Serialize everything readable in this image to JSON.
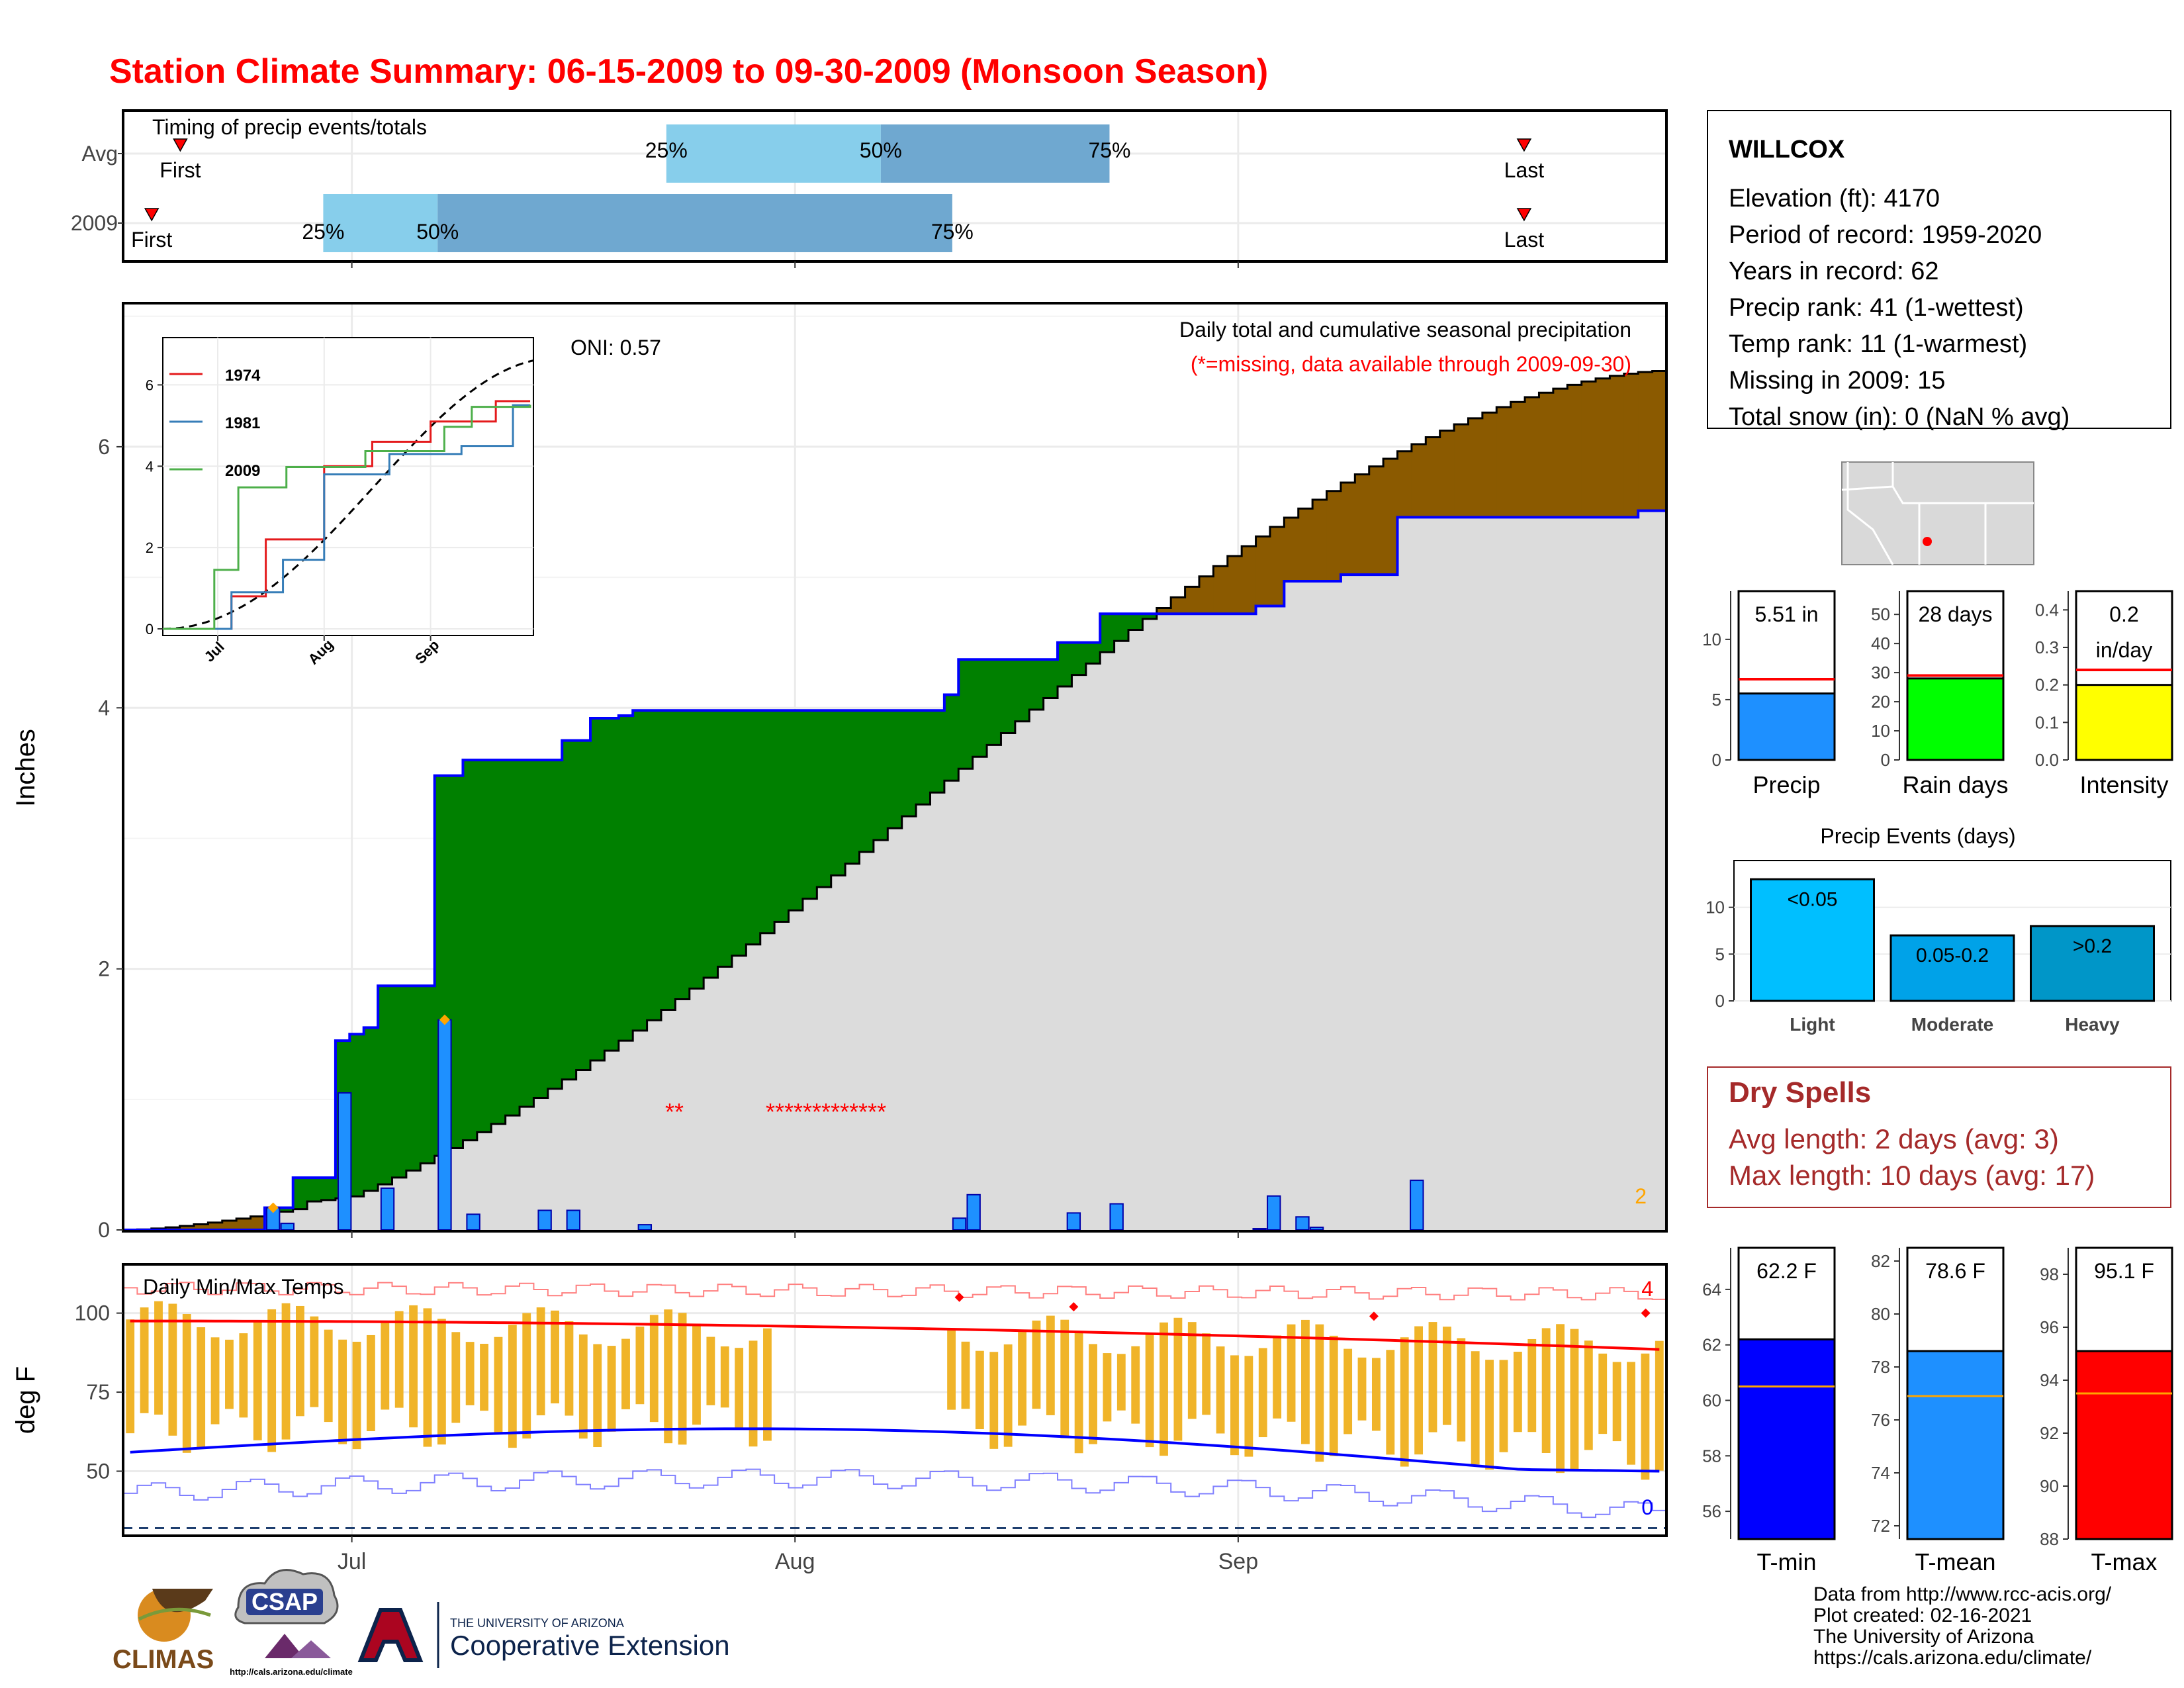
{
  "page": {
    "title": "Station Climate Summary: 06-15-2009 to 09-30-2009 (Monsoon Season)",
    "footer": {
      "data_source": "Data from http://www.rcc-acis.org/",
      "created": "Plot created: 02-16-2021",
      "org": "The University of Arizona",
      "url": "https://cals.arizona.edu/climate/"
    },
    "logos": {
      "climas": "CLIMAS",
      "csap": "CSAP",
      "csap_url": "http://cals.arizona.edu/climate",
      "ua_line1": "THE UNIVERSITY OF ARIZONA",
      "ua_line2": "Cooperative Extension"
    }
  },
  "station": {
    "name": "WILLCOX",
    "lines": [
      "Elevation (ft): 4170",
      "Period of record: 1959-2020",
      "Years in record: 62",
      "Precip rank: 41 (1-wettest)",
      "Temp rank: 11 (1-warmest)",
      "Missing in 2009: 15",
      "Total snow (in): 0 (NaN % avg)"
    ]
  },
  "dry_spells": {
    "title": "Dry Spells",
    "avg": "Avg length: 2 days (avg: 3)",
    "max": "Max length: 10 days (avg: 17)"
  },
  "colors": {
    "title": "#ff0000",
    "wet": "#008000",
    "dry": "#8b5a00",
    "cumulative_line": "#0000ff",
    "bars": "#1e90ff",
    "tmax": "#ff0000",
    "tmin": "#0000ff",
    "temp_bar": "#f0b429",
    "quartile_light": "#87ceeb",
    "quartile_dark": "#6fa8d0",
    "dry_spells": "#a52a2a"
  },
  "chart_data": [
    {
      "id": "timing",
      "type": "bar",
      "title": "Timing of precip events/totals",
      "rows": [
        {
          "label": "Avg",
          "first": "2009-06-19",
          "q25": "2009-07-23",
          "q50": "2009-08-07",
          "q75": "2009-08-23",
          "last": "2009-09-21",
          "first_label": "First",
          "q25_label": "25%",
          "q50_label": "50%",
          "q75_label": "75%",
          "last_label": "Last"
        },
        {
          "label": "2009",
          "first": "2009-06-17",
          "q25": "2009-06-29",
          "q50": "2009-07-07",
          "q75": "2009-08-12",
          "last": "2009-09-21",
          "first_label": "First",
          "q25_label": "25%",
          "q50_label": "50%",
          "q75_label": "75%",
          "last_label": "Last"
        }
      ],
      "x_range": [
        "2009-06-15",
        "2009-09-30"
      ]
    },
    {
      "id": "precip",
      "type": "area",
      "title": "Daily total and cumulative seasonal precipitation",
      "note": "(*=missing, data available through 2009-09-30)",
      "oni": "ONI: 0.57",
      "corner_count": "2",
      "ylabel": "Inches",
      "ylim": [
        0,
        7.1
      ],
      "yticks": [
        0,
        2,
        4,
        6
      ],
      "xticks": [
        "Jul",
        "Aug",
        "Sep"
      ],
      "missing_marks": [
        "**",
        "*************"
      ],
      "cumulative_2009_steps": [
        [
          "2009-06-15",
          0
        ],
        [
          "2009-06-25",
          0.17
        ],
        [
          "2009-06-27",
          0.4
        ],
        [
          "2009-06-30",
          1.45
        ],
        [
          "2009-07-01",
          1.5
        ],
        [
          "2009-07-02",
          1.55
        ],
        [
          "2009-07-03",
          1.87
        ],
        [
          "2009-07-07",
          3.48
        ],
        [
          "2009-07-09",
          3.6
        ],
        [
          "2009-07-16",
          3.75
        ],
        [
          "2009-07-18",
          3.92
        ],
        [
          "2009-07-20",
          3.94
        ],
        [
          "2009-07-21",
          3.98
        ],
        [
          "2009-08-12",
          4.1
        ],
        [
          "2009-08-13",
          4.37
        ],
        [
          "2009-08-20",
          4.5
        ],
        [
          "2009-08-23",
          4.72
        ],
        [
          "2009-09-03",
          4.78
        ],
        [
          "2009-09-05",
          4.97
        ],
        [
          "2009-09-09",
          5.02
        ],
        [
          "2009-09-13",
          5.46
        ],
        [
          "2009-09-30",
          5.51
        ]
      ],
      "cumulative_avg_end": 6.58,
      "daily_bars": [
        {
          "date": "2009-06-25",
          "value": 0.17
        },
        {
          "date": "2009-06-26",
          "value": 0.05
        },
        {
          "date": "2009-06-30",
          "value": 1.05
        },
        {
          "date": "2009-07-03",
          "value": 0.32
        },
        {
          "date": "2009-07-07",
          "value": 1.61
        },
        {
          "date": "2009-07-09",
          "value": 0.12
        },
        {
          "date": "2009-07-14",
          "value": 0.15
        },
        {
          "date": "2009-07-16",
          "value": 0.15
        },
        {
          "date": "2009-07-21",
          "value": 0.04
        },
        {
          "date": "2009-08-12",
          "value": 0.09
        },
        {
          "date": "2009-08-13",
          "value": 0.27
        },
        {
          "date": "2009-08-20",
          "value": 0.13
        },
        {
          "date": "2009-08-23",
          "value": 0.2
        },
        {
          "date": "2009-09-02",
          "value": 0.01
        },
        {
          "date": "2009-09-03",
          "value": 0.26
        },
        {
          "date": "2009-09-05",
          "value": 0.1
        },
        {
          "date": "2009-09-06",
          "value": 0.02
        },
        {
          "date": "2009-09-13",
          "value": 0.38
        }
      ]
    },
    {
      "id": "inset",
      "type": "line",
      "series": [
        {
          "name": "1974",
          "color": "#e41a1c",
          "x": [
            "2009-06-15",
            "2009-07-05",
            "2009-07-15",
            "2009-08-01",
            "2009-08-15",
            "2009-09-01",
            "2009-09-20",
            "2009-09-30"
          ],
          "y": [
            0,
            0.8,
            2.2,
            4.0,
            4.6,
            5.1,
            5.6,
            5.6
          ]
        },
        {
          "name": "1981",
          "color": "#377eb8",
          "x": [
            "2009-06-15",
            "2009-07-05",
            "2009-07-20",
            "2009-08-01",
            "2009-08-20",
            "2009-09-10",
            "2009-09-25",
            "2009-09-30"
          ],
          "y": [
            0,
            0.9,
            1.7,
            3.8,
            4.3,
            4.5,
            5.5,
            5.5
          ]
        },
        {
          "name": "2009",
          "color": "#4daf4a",
          "x": [
            "2009-06-15",
            "2009-06-30",
            "2009-07-07",
            "2009-07-21",
            "2009-08-13",
            "2009-09-05",
            "2009-09-13",
            "2009-09-30"
          ],
          "y": [
            0,
            1.45,
            3.48,
            3.98,
            4.37,
            4.97,
            5.46,
            5.51
          ]
        }
      ],
      "avg_curve": {
        "x": [
          "2009-06-15",
          "2009-07-15",
          "2009-08-15",
          "2009-09-30"
        ],
        "y": [
          0,
          1.0,
          4.1,
          6.6
        ]
      },
      "yticks": [
        0,
        2,
        4,
        6
      ],
      "xticks": [
        "Jul",
        "Aug",
        "Sep"
      ]
    },
    {
      "id": "temps",
      "type": "bar",
      "title": "Daily Min/Max Temps",
      "ylabel": "deg F",
      "ylim": [
        30,
        115
      ],
      "yticks": [
        50,
        75,
        100
      ],
      "record_high_count": "4",
      "record_low_count": "0",
      "xticks": [
        "Jul",
        "Aug",
        "Sep"
      ],
      "missing_ranges": [
        [
          "2009-07-31",
          "2009-08-11"
        ]
      ]
    },
    {
      "id": "gauge_precip",
      "type": "bar",
      "label": "Precip",
      "value_label": "5.51 in",
      "value": 5.51,
      "avg": 6.7,
      "ylim": [
        0,
        14
      ],
      "yticks": [
        0,
        5,
        10
      ]
    },
    {
      "id": "gauge_raindays",
      "type": "bar",
      "label": "Rain days",
      "value_label": "28 days",
      "value": 28,
      "avg": 29,
      "ylim": [
        0,
        58
      ],
      "yticks": [
        0,
        10,
        20,
        30,
        40,
        50
      ]
    },
    {
      "id": "gauge_intensity",
      "type": "bar",
      "label": "Intensity",
      "value_label": "0.2",
      "value_label2": "in/day",
      "value": 0.2,
      "avg": 0.24,
      "ylim": [
        0,
        0.45
      ],
      "yticks": [
        "0.0",
        "0.1",
        "0.2",
        "0.3",
        "0.4"
      ]
    },
    {
      "id": "events",
      "type": "bar",
      "title": "Precip Events (days)",
      "categories": [
        "Light",
        "Moderate",
        "Heavy"
      ],
      "bar_labels": [
        "<0.05",
        "0.05-0.2",
        ">0.2"
      ],
      "values": [
        13,
        7,
        8
      ],
      "ylim": [
        0,
        15
      ],
      "yticks": [
        0,
        5,
        10
      ]
    },
    {
      "id": "gauge_tmin",
      "type": "bar",
      "label": "T-min",
      "value_label": "62.2 F",
      "value": 62.2,
      "avg": 60.5,
      "ylim": [
        55,
        65.5
      ],
      "yticks": [
        56,
        58,
        60,
        62,
        64
      ]
    },
    {
      "id": "gauge_tmean",
      "type": "bar",
      "label": "T-mean",
      "value_label": "78.6 F",
      "value": 78.6,
      "avg": 76.9,
      "ylim": [
        71.5,
        82.5
      ],
      "yticks": [
        72,
        74,
        76,
        78,
        80,
        82
      ]
    },
    {
      "id": "gauge_tmax",
      "type": "bar",
      "label": "T-max",
      "value_label": "95.1 F",
      "value": 95.1,
      "avg": 93.5,
      "ylim": [
        88,
        99
      ],
      "yticks": [
        88,
        90,
        92,
        94,
        96,
        98
      ]
    }
  ]
}
